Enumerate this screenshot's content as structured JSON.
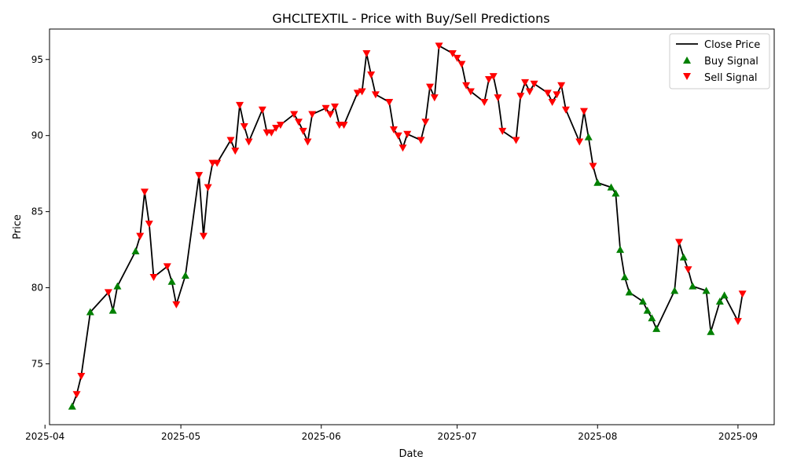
{
  "chart_data": {
    "type": "line",
    "title": "GHCLTEXTIL - Price with Buy/Sell Predictions",
    "xlabel": "Date",
    "ylabel": "Price",
    "xlim": [
      "2025-04-02",
      "2025-09-09"
    ],
    "ylim": [
      71.0,
      97.0
    ],
    "x_ticks": [
      {
        "date": "2025-04-01",
        "label": "2025-04"
      },
      {
        "date": "2025-05-01",
        "label": "2025-05"
      },
      {
        "date": "2025-06-01",
        "label": "2025-06"
      },
      {
        "date": "2025-07-01",
        "label": "2025-07"
      },
      {
        "date": "2025-08-01",
        "label": "2025-08"
      },
      {
        "date": "2025-09-01",
        "label": "2025-09"
      }
    ],
    "y_ticks": [
      75,
      80,
      85,
      90,
      95
    ],
    "grid": false,
    "legend": {
      "position": "upper right",
      "entries": [
        "Close Price",
        "Buy Signal",
        "Sell Signal"
      ]
    },
    "colors": {
      "line": "#000000",
      "buy": "#008000",
      "sell": "#ff0000"
    },
    "series": [
      {
        "name": "Close Price",
        "marker": "line",
        "points": [
          [
            "2025-04-07",
            72.2
          ],
          [
            "2025-04-08",
            73.0
          ],
          [
            "2025-04-09",
            74.2
          ],
          [
            "2025-04-11",
            78.4
          ],
          [
            "2025-04-15",
            79.7
          ],
          [
            "2025-04-16",
            78.5
          ],
          [
            "2025-04-17",
            80.1
          ],
          [
            "2025-04-21",
            82.4
          ],
          [
            "2025-04-22",
            83.4
          ],
          [
            "2025-04-23",
            86.3
          ],
          [
            "2025-04-24",
            84.2
          ],
          [
            "2025-04-25",
            80.7
          ],
          [
            "2025-04-28",
            81.4
          ],
          [
            "2025-04-29",
            80.4
          ],
          [
            "2025-04-30",
            78.9
          ],
          [
            "2025-05-02",
            80.8
          ],
          [
            "2025-05-05",
            87.4
          ],
          [
            "2025-05-06",
            83.4
          ],
          [
            "2025-05-07",
            86.6
          ],
          [
            "2025-05-08",
            88.2
          ],
          [
            "2025-05-09",
            88.2
          ],
          [
            "2025-05-12",
            89.7
          ],
          [
            "2025-05-13",
            89.0
          ],
          [
            "2025-05-14",
            92.0
          ],
          [
            "2025-05-15",
            90.6
          ],
          [
            "2025-05-16",
            89.6
          ],
          [
            "2025-05-19",
            91.7
          ],
          [
            "2025-05-20",
            90.2
          ],
          [
            "2025-05-21",
            90.2
          ],
          [
            "2025-05-22",
            90.5
          ],
          [
            "2025-05-23",
            90.7
          ],
          [
            "2025-05-26",
            91.4
          ],
          [
            "2025-05-27",
            90.9
          ],
          [
            "2025-05-28",
            90.3
          ],
          [
            "2025-05-29",
            89.6
          ],
          [
            "2025-05-30",
            91.4
          ],
          [
            "2025-06-02",
            91.8
          ],
          [
            "2025-06-03",
            91.4
          ],
          [
            "2025-06-04",
            91.9
          ],
          [
            "2025-06-05",
            90.7
          ],
          [
            "2025-06-06",
            90.7
          ],
          [
            "2025-06-09",
            92.8
          ],
          [
            "2025-06-10",
            92.9
          ],
          [
            "2025-06-11",
            95.4
          ],
          [
            "2025-06-12",
            94.0
          ],
          [
            "2025-06-13",
            92.7
          ],
          [
            "2025-06-16",
            92.2
          ],
          [
            "2025-06-17",
            90.4
          ],
          [
            "2025-06-18",
            90.0
          ],
          [
            "2025-06-19",
            89.2
          ],
          [
            "2025-06-20",
            90.1
          ],
          [
            "2025-06-23",
            89.7
          ],
          [
            "2025-06-24",
            90.9
          ],
          [
            "2025-06-25",
            93.2
          ],
          [
            "2025-06-26",
            92.5
          ],
          [
            "2025-06-27",
            95.9
          ],
          [
            "2025-06-30",
            95.4
          ],
          [
            "2025-07-01",
            95.1
          ],
          [
            "2025-07-02",
            94.7
          ],
          [
            "2025-07-03",
            93.3
          ],
          [
            "2025-07-04",
            92.9
          ],
          [
            "2025-07-07",
            92.2
          ],
          [
            "2025-07-08",
            93.7
          ],
          [
            "2025-07-09",
            93.9
          ],
          [
            "2025-07-10",
            92.5
          ],
          [
            "2025-07-11",
            90.3
          ],
          [
            "2025-07-14",
            89.7
          ],
          [
            "2025-07-15",
            92.6
          ],
          [
            "2025-07-16",
            93.5
          ],
          [
            "2025-07-17",
            92.9
          ],
          [
            "2025-07-18",
            93.4
          ],
          [
            "2025-07-21",
            92.8
          ],
          [
            "2025-07-22",
            92.2
          ],
          [
            "2025-07-23",
            92.7
          ],
          [
            "2025-07-24",
            93.3
          ],
          [
            "2025-07-25",
            91.7
          ],
          [
            "2025-07-28",
            89.6
          ],
          [
            "2025-07-29",
            91.6
          ],
          [
            "2025-07-30",
            89.9
          ],
          [
            "2025-07-31",
            88.0
          ],
          [
            "2025-08-01",
            86.9
          ],
          [
            "2025-08-04",
            86.6
          ],
          [
            "2025-08-05",
            86.2
          ],
          [
            "2025-08-06",
            82.5
          ],
          [
            "2025-08-07",
            80.7
          ],
          [
            "2025-08-08",
            79.7
          ],
          [
            "2025-08-11",
            79.1
          ],
          [
            "2025-08-12",
            78.5
          ],
          [
            "2025-08-13",
            78.0
          ],
          [
            "2025-08-14",
            77.3
          ],
          [
            "2025-08-18",
            79.8
          ],
          [
            "2025-08-19",
            83.0
          ],
          [
            "2025-08-20",
            82.0
          ],
          [
            "2025-08-21",
            81.2
          ],
          [
            "2025-08-22",
            80.1
          ],
          [
            "2025-08-25",
            79.8
          ],
          [
            "2025-08-26",
            77.1
          ],
          [
            "2025-08-28",
            79.1
          ],
          [
            "2025-08-29",
            79.5
          ],
          [
            "2025-09-01",
            77.8
          ],
          [
            "2025-09-02",
            79.6
          ]
        ]
      },
      {
        "name": "Buy Signal",
        "marker": "triangle-up",
        "points": [
          [
            "2025-04-07",
            72.2
          ],
          [
            "2025-04-11",
            78.4
          ],
          [
            "2025-04-16",
            78.5
          ],
          [
            "2025-04-17",
            80.1
          ],
          [
            "2025-04-21",
            82.4
          ],
          [
            "2025-04-29",
            80.4
          ],
          [
            "2025-05-02",
            80.8
          ],
          [
            "2025-07-30",
            89.9
          ],
          [
            "2025-08-01",
            86.9
          ],
          [
            "2025-08-04",
            86.6
          ],
          [
            "2025-08-05",
            86.2
          ],
          [
            "2025-08-06",
            82.5
          ],
          [
            "2025-08-07",
            80.7
          ],
          [
            "2025-08-08",
            79.7
          ],
          [
            "2025-08-11",
            79.1
          ],
          [
            "2025-08-12",
            78.5
          ],
          [
            "2025-08-13",
            78.0
          ],
          [
            "2025-08-14",
            77.3
          ],
          [
            "2025-08-18",
            79.8
          ],
          [
            "2025-08-20",
            82.0
          ],
          [
            "2025-08-22",
            80.1
          ],
          [
            "2025-08-25",
            79.8
          ],
          [
            "2025-08-26",
            77.1
          ],
          [
            "2025-08-28",
            79.1
          ],
          [
            "2025-08-29",
            79.5
          ]
        ]
      },
      {
        "name": "Sell Signal",
        "marker": "triangle-down",
        "points": [
          [
            "2025-04-08",
            73.0
          ],
          [
            "2025-04-09",
            74.2
          ],
          [
            "2025-04-15",
            79.7
          ],
          [
            "2025-04-22",
            83.4
          ],
          [
            "2025-04-23",
            86.3
          ],
          [
            "2025-04-24",
            84.2
          ],
          [
            "2025-04-25",
            80.7
          ],
          [
            "2025-04-28",
            81.4
          ],
          [
            "2025-04-30",
            78.9
          ],
          [
            "2025-05-05",
            87.4
          ],
          [
            "2025-05-06",
            83.4
          ],
          [
            "2025-05-07",
            86.6
          ],
          [
            "2025-05-08",
            88.2
          ],
          [
            "2025-05-09",
            88.2
          ],
          [
            "2025-05-12",
            89.7
          ],
          [
            "2025-05-13",
            89.0
          ],
          [
            "2025-05-14",
            92.0
          ],
          [
            "2025-05-15",
            90.6
          ],
          [
            "2025-05-16",
            89.6
          ],
          [
            "2025-05-19",
            91.7
          ],
          [
            "2025-05-20",
            90.2
          ],
          [
            "2025-05-21",
            90.2
          ],
          [
            "2025-05-22",
            90.5
          ],
          [
            "2025-05-23",
            90.7
          ],
          [
            "2025-05-26",
            91.4
          ],
          [
            "2025-05-27",
            90.9
          ],
          [
            "2025-05-28",
            90.3
          ],
          [
            "2025-05-29",
            89.6
          ],
          [
            "2025-05-30",
            91.4
          ],
          [
            "2025-06-02",
            91.8
          ],
          [
            "2025-06-03",
            91.4
          ],
          [
            "2025-06-04",
            91.9
          ],
          [
            "2025-06-05",
            90.7
          ],
          [
            "2025-06-06",
            90.7
          ],
          [
            "2025-06-09",
            92.8
          ],
          [
            "2025-06-10",
            92.9
          ],
          [
            "2025-06-11",
            95.4
          ],
          [
            "2025-06-12",
            94.0
          ],
          [
            "2025-06-13",
            92.7
          ],
          [
            "2025-06-16",
            92.2
          ],
          [
            "2025-06-17",
            90.4
          ],
          [
            "2025-06-18",
            90.0
          ],
          [
            "2025-06-19",
            89.2
          ],
          [
            "2025-06-20",
            90.1
          ],
          [
            "2025-06-23",
            89.7
          ],
          [
            "2025-06-24",
            90.9
          ],
          [
            "2025-06-25",
            93.2
          ],
          [
            "2025-06-26",
            92.5
          ],
          [
            "2025-06-27",
            95.9
          ],
          [
            "2025-06-30",
            95.4
          ],
          [
            "2025-07-01",
            95.1
          ],
          [
            "2025-07-02",
            94.7
          ],
          [
            "2025-07-03",
            93.3
          ],
          [
            "2025-07-04",
            92.9
          ],
          [
            "2025-07-07",
            92.2
          ],
          [
            "2025-07-08",
            93.7
          ],
          [
            "2025-07-09",
            93.9
          ],
          [
            "2025-07-10",
            92.5
          ],
          [
            "2025-07-11",
            90.3
          ],
          [
            "2025-07-14",
            89.7
          ],
          [
            "2025-07-15",
            92.6
          ],
          [
            "2025-07-16",
            93.5
          ],
          [
            "2025-07-17",
            92.9
          ],
          [
            "2025-07-18",
            93.4
          ],
          [
            "2025-07-21",
            92.8
          ],
          [
            "2025-07-22",
            92.2
          ],
          [
            "2025-07-23",
            92.7
          ],
          [
            "2025-07-24",
            93.3
          ],
          [
            "2025-07-25",
            91.7
          ],
          [
            "2025-07-28",
            89.6
          ],
          [
            "2025-07-29",
            91.6
          ],
          [
            "2025-07-31",
            88.0
          ],
          [
            "2025-08-19",
            83.0
          ],
          [
            "2025-08-21",
            81.2
          ],
          [
            "2025-09-01",
            77.8
          ],
          [
            "2025-09-02",
            79.6
          ]
        ]
      }
    ]
  }
}
